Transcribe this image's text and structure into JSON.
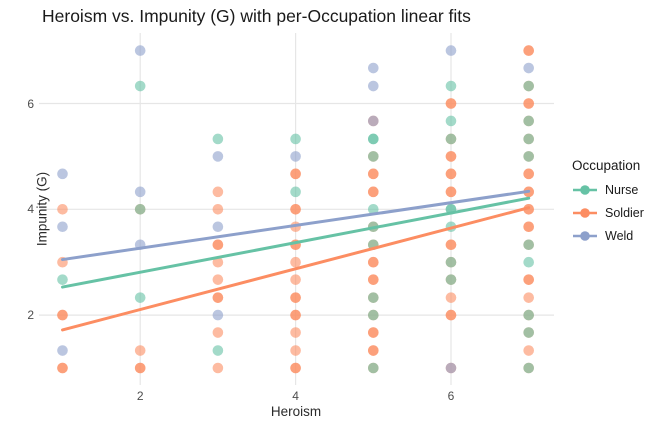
{
  "title": "Heroism vs. Impunity (G) with per-Occupation linear fits",
  "chart_data": {
    "type": "scatter",
    "title": "Heroism vs. Impunity (G) with per-Occupation linear fits",
    "xlabel": "Heroism",
    "ylabel": "Impunity (G)",
    "x_ticks": [
      2,
      4,
      6
    ],
    "y_ticks": [
      2,
      4,
      6
    ],
    "xlim": [
      0.7,
      7.3
    ],
    "ylim": [
      0.7,
      7.3
    ],
    "grid": "major-only light gray on white",
    "legend_title": "Occupation",
    "legend_position": "right",
    "point_alpha": 0.6,
    "background": "#ffffff",
    "gridline_color": "#e6e6e6",
    "series": [
      {
        "name": "Nurse",
        "color": "#66C2A5",
        "fit_line": {
          "x": [
            1,
            7
          ],
          "y": [
            2.53,
            4.21
          ]
        }
      },
      {
        "name": "Soldier",
        "color": "#FC8D62",
        "fit_line": {
          "x": [
            1,
            7
          ],
          "y": [
            1.72,
            4.03
          ]
        }
      },
      {
        "name": "Weld",
        "color": "#8DA0CB",
        "fit_line": {
          "x": [
            1,
            7
          ],
          "y": [
            3.05,
            4.34
          ]
        }
      }
    ],
    "points": [
      {
        "x": 1,
        "y": 4.67,
        "occ": [
          "Weld"
        ]
      },
      {
        "x": 1,
        "y": 4.0,
        "occ": [
          "Soldier"
        ]
      },
      {
        "x": 1,
        "y": 3.67,
        "occ": [
          "Weld"
        ]
      },
      {
        "x": 1,
        "y": 3.0,
        "occ": [
          "Soldier"
        ]
      },
      {
        "x": 1,
        "y": 2.67,
        "occ": [
          "Nurse"
        ]
      },
      {
        "x": 1,
        "y": 2.0,
        "occ": [
          "Soldier",
          "Soldier"
        ]
      },
      {
        "x": 1,
        "y": 1.33,
        "occ": [
          "Weld"
        ]
      },
      {
        "x": 1,
        "y": 1.0,
        "occ": [
          "Soldier",
          "Soldier"
        ]
      },
      {
        "x": 2,
        "y": 7.0,
        "occ": [
          "Weld"
        ]
      },
      {
        "x": 2,
        "y": 6.33,
        "occ": [
          "Nurse"
        ]
      },
      {
        "x": 2,
        "y": 4.33,
        "occ": [
          "Weld"
        ]
      },
      {
        "x": 2,
        "y": 4.0,
        "occ": [
          "Soldier",
          "Nurse"
        ]
      },
      {
        "x": 2,
        "y": 3.33,
        "occ": [
          "Weld"
        ]
      },
      {
        "x": 2,
        "y": 2.33,
        "occ": [
          "Nurse"
        ]
      },
      {
        "x": 2,
        "y": 1.33,
        "occ": [
          "Soldier"
        ]
      },
      {
        "x": 2,
        "y": 1.0,
        "occ": [
          "Soldier",
          "Soldier"
        ]
      },
      {
        "x": 3,
        "y": 5.33,
        "occ": [
          "Nurse"
        ]
      },
      {
        "x": 3,
        "y": 5.0,
        "occ": [
          "Weld"
        ]
      },
      {
        "x": 3,
        "y": 4.33,
        "occ": [
          "Soldier"
        ]
      },
      {
        "x": 3,
        "y": 4.0,
        "occ": [
          "Soldier"
        ]
      },
      {
        "x": 3,
        "y": 3.67,
        "occ": [
          "Weld"
        ]
      },
      {
        "x": 3,
        "y": 3.33,
        "occ": [
          "Soldier",
          "Soldier"
        ]
      },
      {
        "x": 3,
        "y": 3.0,
        "occ": [
          "Soldier"
        ]
      },
      {
        "x": 3,
        "y": 2.67,
        "occ": [
          "Soldier"
        ]
      },
      {
        "x": 3,
        "y": 2.33,
        "occ": [
          "Soldier",
          "Soldier"
        ]
      },
      {
        "x": 3,
        "y": 2.0,
        "occ": [
          "Weld"
        ]
      },
      {
        "x": 3,
        "y": 1.67,
        "occ": [
          "Soldier"
        ]
      },
      {
        "x": 3,
        "y": 1.33,
        "occ": [
          "Nurse"
        ]
      },
      {
        "x": 3,
        "y": 1.0,
        "occ": [
          "Soldier"
        ]
      },
      {
        "x": 4,
        "y": 5.33,
        "occ": [
          "Nurse"
        ]
      },
      {
        "x": 4,
        "y": 5.0,
        "occ": [
          "Weld"
        ]
      },
      {
        "x": 4,
        "y": 4.67,
        "occ": [
          "Soldier",
          "Soldier"
        ]
      },
      {
        "x": 4,
        "y": 4.33,
        "occ": [
          "Nurse"
        ]
      },
      {
        "x": 4,
        "y": 4.0,
        "occ": [
          "Soldier",
          "Soldier"
        ]
      },
      {
        "x": 4,
        "y": 3.67,
        "occ": [
          "Soldier"
        ]
      },
      {
        "x": 4,
        "y": 3.33,
        "occ": [
          "Soldier",
          "Soldier"
        ]
      },
      {
        "x": 4,
        "y": 3.0,
        "occ": [
          "Soldier"
        ]
      },
      {
        "x": 4,
        "y": 2.67,
        "occ": [
          "Soldier"
        ]
      },
      {
        "x": 4,
        "y": 2.33,
        "occ": [
          "Soldier",
          "Soldier"
        ]
      },
      {
        "x": 4,
        "y": 2.0,
        "occ": [
          "Soldier",
          "Soldier"
        ]
      },
      {
        "x": 4,
        "y": 1.67,
        "occ": [
          "Soldier"
        ]
      },
      {
        "x": 4,
        "y": 1.33,
        "occ": [
          "Soldier"
        ]
      },
      {
        "x": 4,
        "y": 1.0,
        "occ": [
          "Soldier",
          "Soldier"
        ]
      },
      {
        "x": 5,
        "y": 6.67,
        "occ": [
          "Weld"
        ]
      },
      {
        "x": 5,
        "y": 6.33,
        "occ": [
          "Weld"
        ]
      },
      {
        "x": 5,
        "y": 5.67,
        "occ": [
          "Soldier",
          "Weld"
        ]
      },
      {
        "x": 5,
        "y": 5.33,
        "occ": [
          "Nurse",
          "Nurse"
        ]
      },
      {
        "x": 5,
        "y": 5.0,
        "occ": [
          "Soldier",
          "Nurse"
        ]
      },
      {
        "x": 5,
        "y": 4.67,
        "occ": [
          "Soldier",
          "Soldier"
        ]
      },
      {
        "x": 5,
        "y": 4.33,
        "occ": [
          "Soldier",
          "Soldier"
        ]
      },
      {
        "x": 5,
        "y": 4.0,
        "occ": [
          "Nurse"
        ]
      },
      {
        "x": 5,
        "y": 3.67,
        "occ": [
          "Soldier",
          "Nurse"
        ]
      },
      {
        "x": 5,
        "y": 3.33,
        "occ": [
          "Soldier",
          "Nurse"
        ]
      },
      {
        "x": 5,
        "y": 3.0,
        "occ": [
          "Soldier",
          "Soldier"
        ]
      },
      {
        "x": 5,
        "y": 2.67,
        "occ": [
          "Soldier",
          "Soldier"
        ]
      },
      {
        "x": 5,
        "y": 2.33,
        "occ": [
          "Soldier",
          "Nurse"
        ]
      },
      {
        "x": 5,
        "y": 2.0,
        "occ": [
          "Soldier",
          "Nurse"
        ]
      },
      {
        "x": 5,
        "y": 1.67,
        "occ": [
          "Soldier",
          "Soldier"
        ]
      },
      {
        "x": 5,
        "y": 1.33,
        "occ": [
          "Soldier",
          "Soldier"
        ]
      },
      {
        "x": 5,
        "y": 1.0,
        "occ": [
          "Soldier",
          "Nurse"
        ]
      },
      {
        "x": 6,
        "y": 7.0,
        "occ": [
          "Weld"
        ]
      },
      {
        "x": 6,
        "y": 6.33,
        "occ": [
          "Nurse"
        ]
      },
      {
        "x": 6,
        "y": 6.0,
        "occ": [
          "Soldier",
          "Soldier"
        ]
      },
      {
        "x": 6,
        "y": 5.67,
        "occ": [
          "Nurse"
        ]
      },
      {
        "x": 6,
        "y": 5.33,
        "occ": [
          "Soldier",
          "Nurse"
        ]
      },
      {
        "x": 6,
        "y": 5.0,
        "occ": [
          "Soldier",
          "Soldier"
        ]
      },
      {
        "x": 6,
        "y": 4.67,
        "occ": [
          "Soldier",
          "Soldier"
        ]
      },
      {
        "x": 6,
        "y": 4.33,
        "occ": [
          "Soldier",
          "Soldier"
        ]
      },
      {
        "x": 6,
        "y": 4.0,
        "occ": [
          "Nurse",
          "Nurse"
        ]
      },
      {
        "x": 6,
        "y": 3.67,
        "occ": [
          "Nurse"
        ]
      },
      {
        "x": 6,
        "y": 3.33,
        "occ": [
          "Soldier",
          "Soldier"
        ]
      },
      {
        "x": 6,
        "y": 3.0,
        "occ": [
          "Soldier",
          "Nurse"
        ]
      },
      {
        "x": 6,
        "y": 2.67,
        "occ": [
          "Soldier",
          "Nurse"
        ]
      },
      {
        "x": 6,
        "y": 2.33,
        "occ": [
          "Soldier"
        ]
      },
      {
        "x": 6,
        "y": 2.0,
        "occ": [
          "Soldier",
          "Soldier"
        ]
      },
      {
        "x": 6,
        "y": 1.0,
        "occ": [
          "Soldier",
          "Weld"
        ]
      },
      {
        "x": 7,
        "y": 7.0,
        "occ": [
          "Soldier",
          "Soldier"
        ]
      },
      {
        "x": 7,
        "y": 6.67,
        "occ": [
          "Weld"
        ]
      },
      {
        "x": 7,
        "y": 6.33,
        "occ": [
          "Soldier",
          "Nurse"
        ]
      },
      {
        "x": 7,
        "y": 6.0,
        "occ": [
          "Soldier",
          "Soldier"
        ]
      },
      {
        "x": 7,
        "y": 5.67,
        "occ": [
          "Soldier",
          "Nurse"
        ]
      },
      {
        "x": 7,
        "y": 5.33,
        "occ": [
          "Soldier",
          "Nurse"
        ]
      },
      {
        "x": 7,
        "y": 5.0,
        "occ": [
          "Soldier",
          "Nurse"
        ]
      },
      {
        "x": 7,
        "y": 4.67,
        "occ": [
          "Soldier",
          "Soldier"
        ]
      },
      {
        "x": 7,
        "y": 4.33,
        "occ": [
          "Soldier",
          "Soldier"
        ]
      },
      {
        "x": 7,
        "y": 4.0,
        "occ": [
          "Soldier",
          "Soldier"
        ]
      },
      {
        "x": 7,
        "y": 3.67,
        "occ": [
          "Soldier",
          "Soldier"
        ]
      },
      {
        "x": 7,
        "y": 3.33,
        "occ": [
          "Soldier",
          "Nurse"
        ]
      },
      {
        "x": 7,
        "y": 3.0,
        "occ": [
          "Nurse"
        ]
      },
      {
        "x": 7,
        "y": 2.67,
        "occ": [
          "Soldier",
          "Soldier"
        ]
      },
      {
        "x": 7,
        "y": 2.33,
        "occ": [
          "Soldier"
        ]
      },
      {
        "x": 7,
        "y": 2.0,
        "occ": [
          "Soldier",
          "Nurse"
        ]
      },
      {
        "x": 7,
        "y": 1.67,
        "occ": [
          "Soldier",
          "Nurse"
        ]
      },
      {
        "x": 7,
        "y": 1.33,
        "occ": [
          "Soldier"
        ]
      },
      {
        "x": 7,
        "y": 1.0,
        "occ": [
          "Soldier",
          "Nurse"
        ]
      }
    ]
  }
}
